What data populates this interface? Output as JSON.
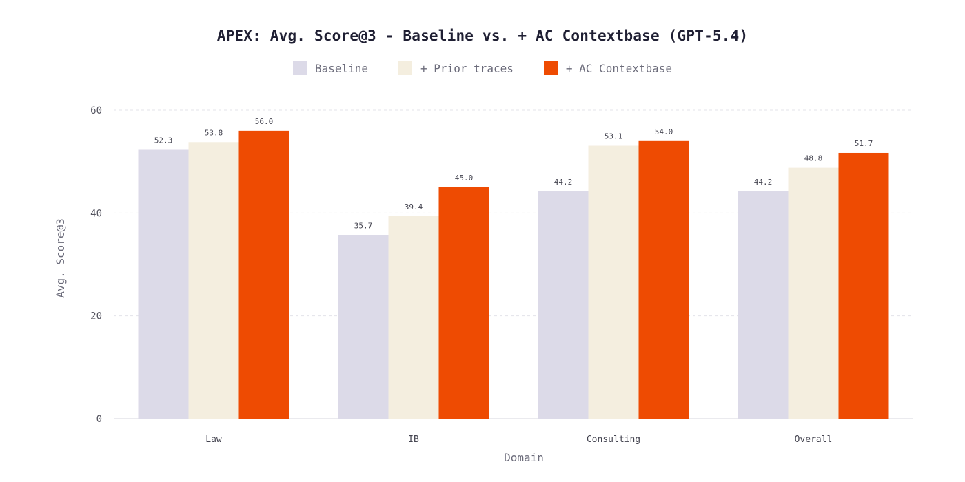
{
  "chart_data": {
    "type": "bar",
    "title": "APEX: Avg. Score@3 - Baseline vs. + AC Contextbase (GPT-5.4)",
    "xlabel": "Domain",
    "ylabel": "Avg. Score@3",
    "categories": [
      "Law",
      "IB",
      "Consulting",
      "Overall"
    ],
    "series": [
      {
        "name": "Baseline",
        "color": "#dcdae8",
        "values": [
          52.3,
          35.7,
          44.2,
          44.2
        ]
      },
      {
        "name": "+ Prior traces",
        "color": "#f4eedf",
        "values": [
          53.8,
          39.4,
          53.1,
          48.8
        ]
      },
      {
        "name": "+ AC Contextbase",
        "color": "#ee4b02",
        "values": [
          56.0,
          45.0,
          54.0,
          51.7
        ]
      }
    ],
    "ylim": [
      0,
      60
    ],
    "yticks": [
      "0",
      "20",
      "40",
      "60"
    ],
    "grid": true,
    "legend_position": "top-center"
  }
}
